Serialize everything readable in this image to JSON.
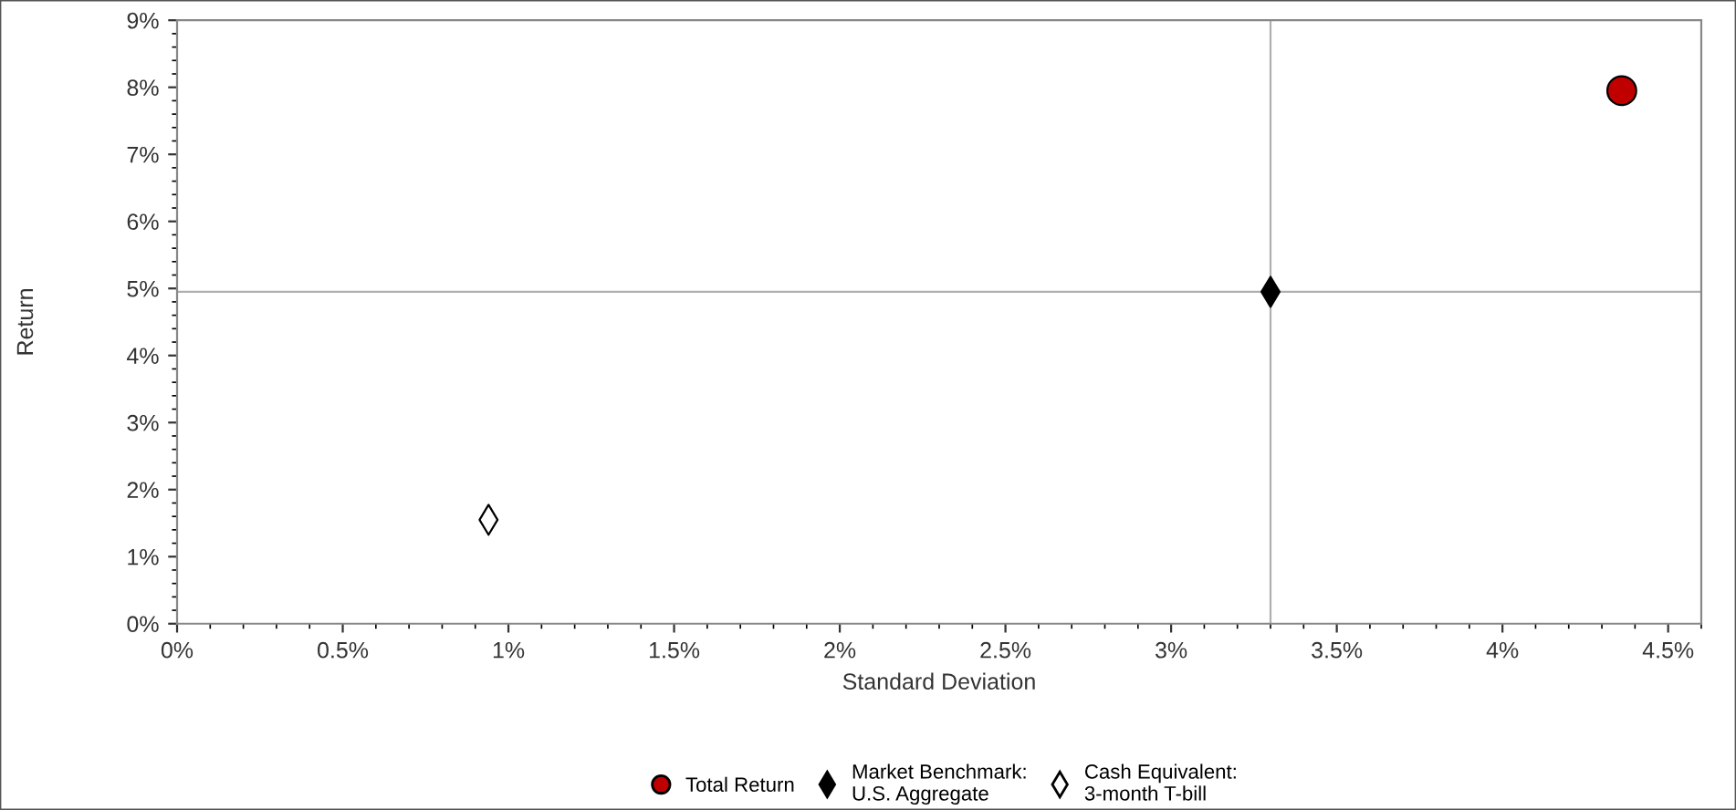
{
  "chart_data": {
    "type": "scatter",
    "xlabel": "Standard Deviation",
    "ylabel": "Return",
    "series": [
      {
        "name": "Total Return",
        "color": "#c00000",
        "marker": "circle",
        "x": [
          4.36
        ],
        "values": [
          7.95
        ]
      },
      {
        "name": "Market Benchmark:\nU.S. Aggregate",
        "color": "#000000",
        "marker": "diamond",
        "x": [
          3.3
        ],
        "values": [
          4.95
        ]
      },
      {
        "name": "Cash Equivalent:\n3-month T-bill",
        "color": "#ffffff",
        "marker": "diamond",
        "x": [
          0.94
        ],
        "values": [
          1.55
        ]
      }
    ],
    "xlim": [
      0,
      4.6
    ],
    "ylim": [
      0,
      9
    ],
    "xticks": [
      {
        "value": 0,
        "label": "0%"
      },
      {
        "value": 0.5,
        "label": "0.5%"
      },
      {
        "value": 1,
        "label": "1%"
      },
      {
        "value": 1.5,
        "label": "1.5%"
      },
      {
        "value": 2,
        "label": "2%"
      },
      {
        "value": 2.5,
        "label": "2.5%"
      },
      {
        "value": 3,
        "label": "3%"
      },
      {
        "value": 3.5,
        "label": "3.5%"
      },
      {
        "value": 4,
        "label": "4%"
      },
      {
        "value": 4.5,
        "label": "4.5%"
      }
    ],
    "yticks": [
      {
        "value": 0,
        "label": "0%"
      },
      {
        "value": 1,
        "label": "1%"
      },
      {
        "value": 2,
        "label": "2%"
      },
      {
        "value": 3,
        "label": "3%"
      },
      {
        "value": 4,
        "label": "4%"
      },
      {
        "value": 5,
        "label": "5%"
      },
      {
        "value": 6,
        "label": "6%"
      },
      {
        "value": 7,
        "label": "7%"
      },
      {
        "value": 8,
        "label": "8%"
      },
      {
        "value": 9,
        "label": "9%"
      }
    ],
    "ref_lines": [
      {
        "axis": "x",
        "value": 3.3,
        "color": "#b0b0b0"
      },
      {
        "axis": "y",
        "value": 4.95,
        "color": "#b0b0b0"
      }
    ],
    "grid": false,
    "legend": "bottom"
  }
}
